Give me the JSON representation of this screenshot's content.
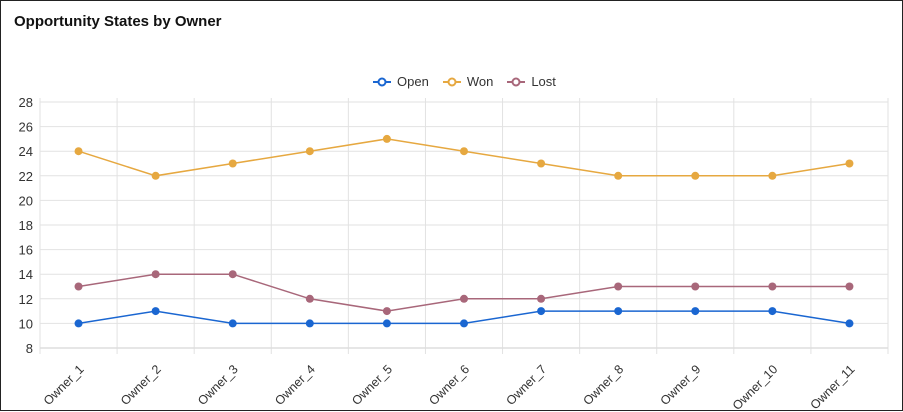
{
  "chart_data": {
    "type": "line",
    "title": "Opportunity States by Owner",
    "xlabel": "",
    "ylabel": "",
    "categories": [
      "Owner_1",
      "Owner_2",
      "Owner_3",
      "Owner_4",
      "Owner_5",
      "Owner_6",
      "Owner_7",
      "Owner_8",
      "Owner_9",
      "Owner_10",
      "Owner_11"
    ],
    "ylim": [
      8,
      28
    ],
    "yticks": [
      "8",
      "10",
      "12",
      "14",
      "16",
      "18",
      "20",
      "22",
      "24",
      "26",
      "28"
    ],
    "grid": true,
    "legend": "top-center",
    "series": [
      {
        "name": "Open",
        "color": "#1a66d1",
        "values": [
          10,
          11,
          10,
          10,
          10,
          10,
          11,
          11,
          11,
          11,
          10
        ]
      },
      {
        "name": "Won",
        "color": "#e6a840",
        "values": [
          24,
          22,
          23,
          24,
          25,
          24,
          23,
          22,
          22,
          22,
          23
        ]
      },
      {
        "name": "Lost",
        "color": "#a8677a",
        "values": [
          13,
          14,
          14,
          12,
          11,
          12,
          12,
          13,
          13,
          13,
          13
        ]
      }
    ]
  }
}
